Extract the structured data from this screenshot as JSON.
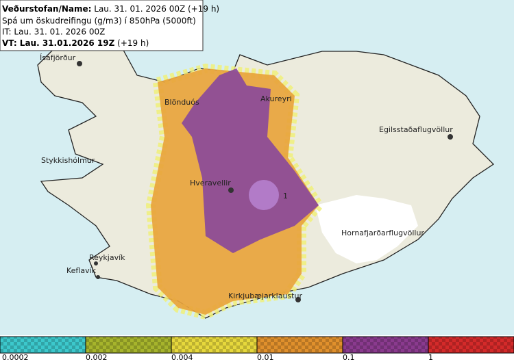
{
  "header": {
    "line1": {
      "label": "Veðurstofan/Name:",
      "value": "Lau. 31. 01. 2026 00Z (+19 h)"
    },
    "line2": "Spá um öskudreifingu (g/m3) í 850hPa (5000ft)",
    "line3": "IT: Lau. 31. 01. 2026 00Z",
    "line4": {
      "label": "VT: Lau. 31.01.2026 19Z",
      "value": "(+19 h)"
    }
  },
  "places": [
    {
      "label": "Ísafjörður"
    },
    {
      "label": "Blönduós"
    },
    {
      "label": "Akureyri"
    },
    {
      "label": "Egilsstaðaflugvöllur"
    },
    {
      "label": "Stykkishólmur"
    },
    {
      "label": "Hveravellir"
    },
    {
      "label": "Hornafjarðarflugvöllur"
    },
    {
      "label": "Reykjavík"
    },
    {
      "label": "Keflavík"
    },
    {
      "label": "Kirkjubæjarklaustur"
    },
    {
      "label": "1"
    }
  ],
  "legend": {
    "labels": [
      "0.0002",
      "0.002",
      "0.004",
      "0.01",
      "0.1",
      "1"
    ]
  }
}
